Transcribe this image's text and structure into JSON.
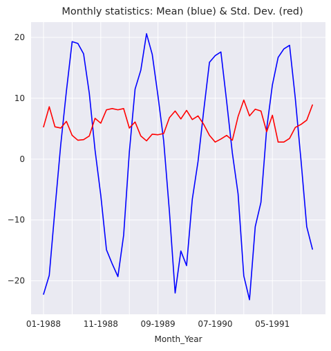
{
  "chart_data": {
    "type": "line",
    "title": "Monthly statistics: Mean (blue) & Std. Dev. (red)",
    "xlabel": "Month_Year",
    "ylabel": "",
    "x": [
      "01-1988",
      "02-1988",
      "03-1988",
      "04-1988",
      "05-1988",
      "06-1988",
      "07-1988",
      "08-1988",
      "09-1988",
      "10-1988",
      "11-1988",
      "12-1988",
      "01-1989",
      "02-1989",
      "03-1989",
      "04-1989",
      "05-1989",
      "06-1989",
      "07-1989",
      "08-1989",
      "09-1989",
      "10-1989",
      "11-1989",
      "12-1989",
      "01-1990",
      "02-1990",
      "03-1990",
      "04-1990",
      "05-1990",
      "06-1990",
      "07-1990",
      "08-1990",
      "09-1990",
      "10-1990",
      "11-1990",
      "12-1990",
      "01-1991",
      "02-1991",
      "03-1991",
      "04-1991",
      "05-1991",
      "06-1991",
      "07-1991",
      "08-1991",
      "09-1991",
      "10-1991",
      "11-1991",
      "12-1991"
    ],
    "xticks": [
      "01-1988",
      "11-1988",
      "09-1989",
      "07-1990",
      "05-1991"
    ],
    "yticks": [
      -20,
      -10,
      0,
      10,
      20
    ],
    "ylim": [
      -25.5,
      22.5
    ],
    "grid": true,
    "series": [
      {
        "color": "#0000ff",
        "values": [
          -22.2,
          -19.1,
          -8.2,
          2.3,
          11.2,
          19.3,
          19.0,
          17.3,
          10.8,
          1.5,
          -5.9,
          -14.9,
          -17.2,
          -19.3,
          -12.5,
          1.2,
          11.5,
          14.6,
          20.6,
          17.2,
          10.4,
          3.0,
          -8.6,
          -22.0,
          -15.1,
          -17.5,
          -6.6,
          -0.4,
          8.0,
          15.9,
          17.0,
          17.6,
          9.5,
          1.0,
          -5.7,
          -19.2,
          -23.1,
          -11.1,
          -7.1,
          5.0,
          12.2,
          16.7,
          18.1,
          18.7,
          10.0,
          -0.2,
          -11.1,
          -14.8
        ]
      },
      {
        "color": "#ff0000",
        "values": [
          5.3,
          8.6,
          5.3,
          5.1,
          6.2,
          3.9,
          3.1,
          3.2,
          3.8,
          6.7,
          5.9,
          8.1,
          8.3,
          8.1,
          8.3,
          5.1,
          6.1,
          3.8,
          3.0,
          4.1,
          4.0,
          4.2,
          6.8,
          7.9,
          6.6,
          8.0,
          6.5,
          7.1,
          5.7,
          3.9,
          2.8,
          3.3,
          3.9,
          3.1,
          7.0,
          9.7,
          7.1,
          8.2,
          7.9,
          4.5,
          7.2,
          2.8,
          2.8,
          3.4,
          5.2,
          5.7,
          6.4,
          8.9
        ]
      }
    ]
  }
}
